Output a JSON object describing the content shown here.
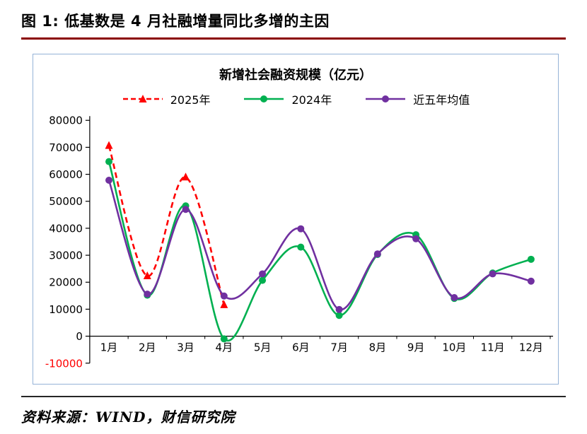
{
  "header": {
    "title": "图 1:  低基数是 4 月社融增量同比多增的主因"
  },
  "footer": {
    "source": "资料来源：WIND，财信研究院"
  },
  "chart_data": {
    "type": "line",
    "title": "新增社会融资规模（亿元）",
    "categories": [
      "1月",
      "2月",
      "3月",
      "4月",
      "5月",
      "6月",
      "7月",
      "8月",
      "9月",
      "10月",
      "11月",
      "12月"
    ],
    "ylim": [
      -10000,
      80000
    ],
    "ytick_step": 10000,
    "grid": false,
    "legend_position": "top",
    "colors": {
      "negative_tick": "#FF0000",
      "title_rule": "#8B0000",
      "chart_border": "#95B3D7"
    },
    "series": [
      {
        "name": "2025年",
        "color": "#FF0000",
        "dash": true,
        "marker": "triangle",
        "values": [
          70600,
          22300,
          58900,
          11600
        ]
      },
      {
        "name": "2024年",
        "color": "#00B050",
        "dash": false,
        "marker": "circle",
        "values": [
          64700,
          15200,
          48300,
          -1000,
          20700,
          33000,
          7700,
          30300,
          37600,
          14000,
          23400,
          28500
        ]
      },
      {
        "name": "近五年均值",
        "color": "#7030A0",
        "dash": false,
        "marker": "circle",
        "values": [
          57800,
          15600,
          47000,
          14900,
          23100,
          39800,
          9900,
          30500,
          36100,
          14300,
          23100,
          20400
        ]
      }
    ]
  }
}
